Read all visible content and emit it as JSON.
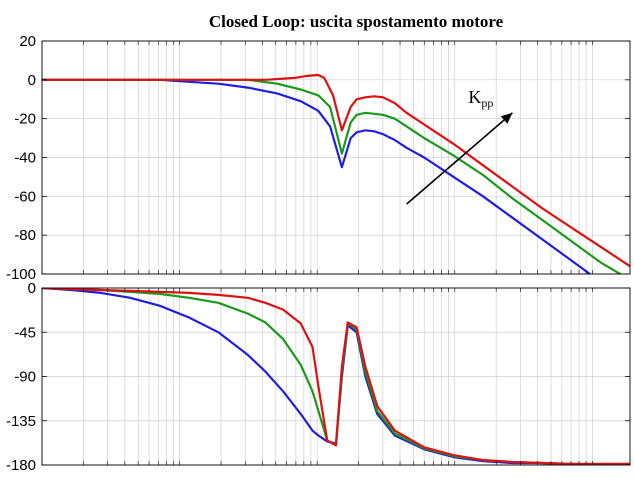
{
  "chart_data": [
    {
      "type": "line",
      "title": "Closed Loop: uscita spostamento motore",
      "xlabel": "",
      "ylabel": "",
      "ylim": [
        -100,
        20
      ],
      "yticks": [
        20,
        0,
        -20,
        -40,
        -60,
        -80,
        -100
      ],
      "ytick_labels": [
        "20",
        "0",
        "-20",
        "-40",
        "-60",
        "-80",
        "-100"
      ],
      "xlim": [
        0,
        1
      ],
      "grid": true,
      "legend": "none",
      "annotation": {
        "text": "K",
        "subscript": "pp",
        "arrow": "diagonal pointing up-right",
        "from": [
          0.62,
          -64
        ],
        "to": [
          0.8,
          -17
        ]
      },
      "series": [
        {
          "color": "#dd1111",
          "x": [
            0,
            0.22,
            0.38,
            0.43,
            0.45,
            0.47,
            0.48,
            0.495,
            0.51,
            0.525,
            0.535,
            0.55,
            0.565,
            0.58,
            0.6,
            0.62,
            0.65,
            0.7,
            0.75,
            0.8,
            0.85,
            0.9,
            0.95,
            1.0
          ],
          "y": [
            0,
            0,
            0,
            1,
            2,
            2.5,
            1,
            -8,
            -26,
            -14,
            -10,
            -9,
            -8.5,
            -9,
            -12,
            -17,
            -23,
            -33,
            -44,
            -55,
            -66,
            -76,
            -86,
            -96
          ]
        },
        {
          "color": "#1a9a1a",
          "x": [
            0,
            0.22,
            0.3,
            0.35,
            0.4,
            0.44,
            0.47,
            0.49,
            0.51,
            0.525,
            0.535,
            0.55,
            0.565,
            0.58,
            0.6,
            0.62,
            0.65,
            0.7,
            0.75,
            0.8,
            0.85,
            0.9,
            0.95,
            1.0
          ],
          "y": [
            0,
            0,
            0,
            0,
            -2,
            -5,
            -8,
            -14,
            -38,
            -22,
            -18,
            -17,
            -17.5,
            -18,
            -20,
            -24,
            -30,
            -39,
            -49,
            -61,
            -72,
            -83,
            -94,
            -103
          ]
        },
        {
          "color": "#1f1fdd",
          "x": [
            0,
            0.2,
            0.25,
            0.3,
            0.35,
            0.4,
            0.44,
            0.47,
            0.49,
            0.51,
            0.525,
            0.535,
            0.55,
            0.565,
            0.58,
            0.6,
            0.62,
            0.65,
            0.7,
            0.75,
            0.8,
            0.85,
            0.9,
            0.95,
            1.0
          ],
          "y": [
            0,
            0,
            -1,
            -2,
            -4,
            -7,
            -11,
            -16,
            -24,
            -45,
            -30,
            -27,
            -26,
            -26.5,
            -28,
            -31,
            -35,
            -40,
            -50,
            -60,
            -71,
            -82,
            -93,
            -104,
            -114
          ]
        }
      ]
    },
    {
      "type": "line",
      "title": "",
      "xlabel": "",
      "ylabel": "",
      "ylim": [
        -180,
        0
      ],
      "yticks": [
        0,
        -45,
        -90,
        -135,
        -180
      ],
      "ytick_labels": [
        "0",
        "-45",
        "-90",
        "-135",
        "-180"
      ],
      "xlim": [
        0,
        1
      ],
      "grid": true,
      "legend": "none",
      "series": [
        {
          "color": "#dd1111",
          "x": [
            0,
            0.05,
            0.1,
            0.15,
            0.2,
            0.25,
            0.3,
            0.35,
            0.38,
            0.41,
            0.44,
            0.46,
            0.47,
            0.485,
            0.5,
            0.51,
            0.52,
            0.535,
            0.55,
            0.57,
            0.6,
            0.65,
            0.7,
            0.75,
            0.8,
            0.85,
            0.9,
            0.95,
            1.0
          ],
          "y": [
            0,
            -1,
            -2,
            -3,
            -4,
            -5,
            -7,
            -10,
            -15,
            -22,
            -36,
            -60,
            -100,
            -155,
            -160,
            -80,
            -35,
            -40,
            -80,
            -120,
            -145,
            -162,
            -170,
            -175,
            -177,
            -178,
            -179,
            -179,
            -179
          ]
        },
        {
          "color": "#1a9a1a",
          "x": [
            0,
            0.05,
            0.1,
            0.15,
            0.2,
            0.25,
            0.3,
            0.35,
            0.38,
            0.41,
            0.44,
            0.46,
            0.47,
            0.485,
            0.5,
            0.51,
            0.52,
            0.535,
            0.55,
            0.57,
            0.6,
            0.65,
            0.7,
            0.75,
            0.8,
            0.85,
            0.9,
            0.95,
            1.0
          ],
          "y": [
            0,
            -1,
            -2,
            -4,
            -6,
            -10,
            -15,
            -26,
            -35,
            -52,
            -78,
            -105,
            -125,
            -155,
            -160,
            -85,
            -36,
            -42,
            -85,
            -125,
            -148,
            -163,
            -171,
            -175,
            -177,
            -178,
            -179,
            -179,
            -179
          ]
        },
        {
          "color": "#1f1fdd",
          "x": [
            0,
            0.05,
            0.1,
            0.15,
            0.2,
            0.25,
            0.3,
            0.35,
            0.38,
            0.41,
            0.44,
            0.46,
            0.47,
            0.485,
            0.5,
            0.51,
            0.52,
            0.535,
            0.55,
            0.57,
            0.6,
            0.65,
            0.7,
            0.75,
            0.8,
            0.85,
            0.9,
            0.95,
            1.0
          ],
          "y": [
            0,
            -2,
            -5,
            -10,
            -18,
            -30,
            -45,
            -68,
            -85,
            -105,
            -128,
            -145,
            -150,
            -156,
            -158,
            -90,
            -38,
            -45,
            -90,
            -128,
            -150,
            -164,
            -172,
            -176,
            -178,
            -178,
            -179,
            -179,
            -179
          ]
        }
      ]
    }
  ]
}
